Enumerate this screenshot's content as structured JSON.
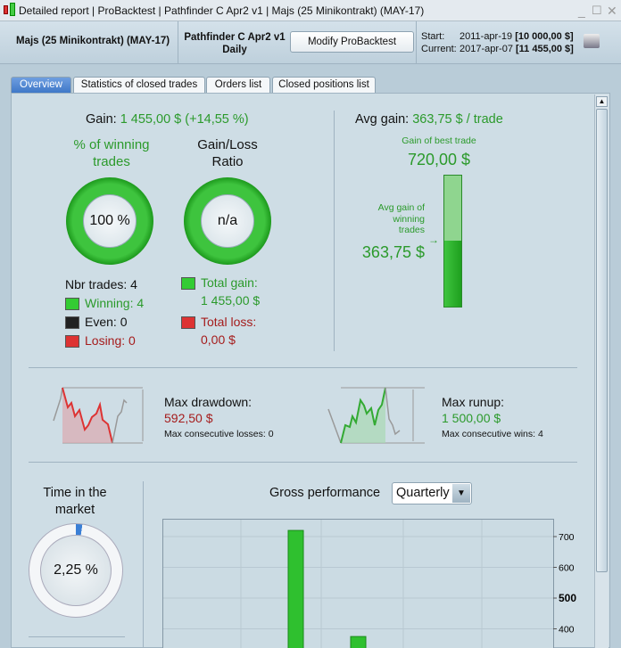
{
  "window": {
    "title_parts": [
      "Detailed report",
      "ProBacktest",
      "Pathfinder C Apr2 v1",
      "Majs (25 Minikontrakt) (MAY-17)"
    ]
  },
  "header": {
    "instrument": "Majs (25 Minikontrakt) (MAY-17)",
    "strategy": "Pathfinder C Apr2 v1",
    "timeframe": "Daily",
    "modify_label": "Modify ProBacktest",
    "start_label": "Start:",
    "start_date": "2011-apr-19",
    "start_value": "[10 000,00 $]",
    "current_label": "Current:",
    "current_date": "2017-apr-07",
    "current_value": "[11 455,00 $]"
  },
  "tabs": [
    {
      "label": "Overview"
    },
    {
      "label": "Statistics of closed trades"
    },
    {
      "label": "Orders list"
    },
    {
      "label": "Closed positions list"
    }
  ],
  "overview": {
    "gain_label": "Gain:",
    "gain_value": "1 455,00 $ (+14,55 %)",
    "winning_title": "% of winning trades",
    "winning_pct": "100 %",
    "ratio_title": "Gain/Loss Ratio",
    "ratio_value": "n/a",
    "nbr_trades": "Nbr trades: 4",
    "winning": "Winning: 4",
    "even": "Even: 0",
    "losing": "Losing: 0",
    "total_gain_label": "Total gain:",
    "total_gain": "1 455,00 $",
    "total_loss_label": "Total loss:",
    "total_loss": "0,00 $",
    "avg_gain_label": "Avg gain:",
    "avg_gain_value": "363,75 $ / trade",
    "best_trade_label": "Gain of best trade",
    "best_trade_value": "720,00 $",
    "avg_winning_label": "Avg gain of winning trades",
    "avg_winning_value": "363,75 $",
    "drawdown_label": "Max drawdown:",
    "drawdown_value": "592,50 $",
    "consec_losses": "Max consecutive losses: 0",
    "runup_label": "Max runup:",
    "runup_value": "1 500,00 $",
    "consec_wins": "Max consecutive wins: 4",
    "time_market_label": "Time in the market",
    "time_market_value": "2,25 %",
    "gross_label": "Gross performance",
    "period_select": "Quarterly"
  },
  "colors": {
    "gain": "#2b9a2b",
    "loss": "#a51c1c",
    "accent": "#3f78c8"
  },
  "chart_data": {
    "type": "bar",
    "title": "Gross performance",
    "values": [
      720,
      375
    ],
    "yticks": [
      400,
      500,
      600,
      700
    ],
    "ylim": [
      370,
      750
    ]
  }
}
